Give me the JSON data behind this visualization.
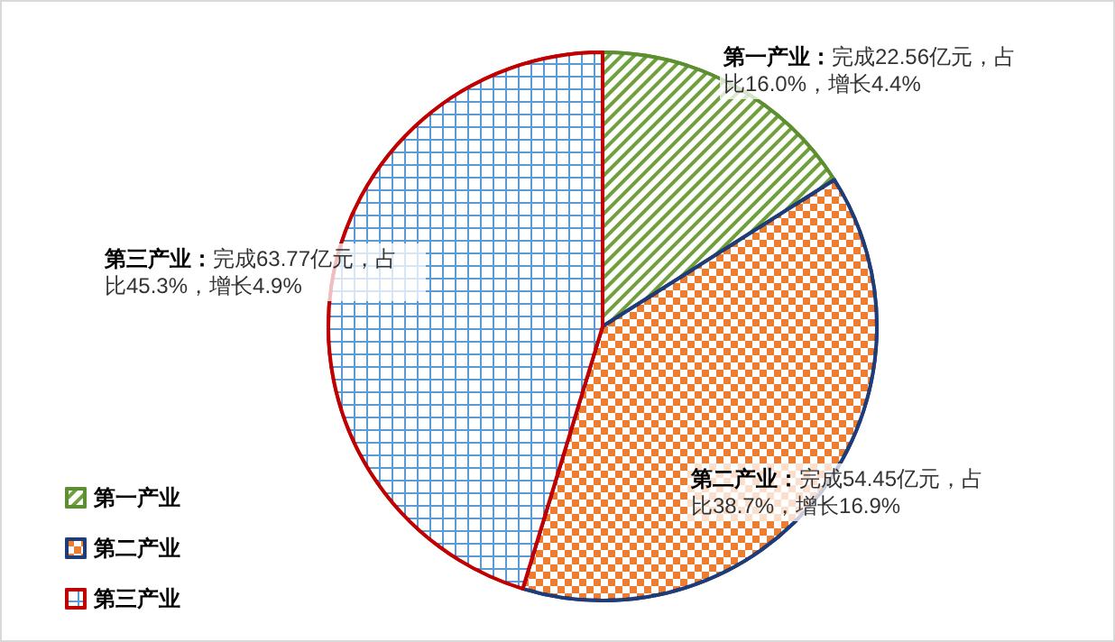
{
  "chart_data": {
    "type": "pie",
    "categories": [
      "第一产业",
      "第二产业",
      "第三产业"
    ],
    "values": [
      22.56,
      54.45,
      63.77
    ],
    "colors": [
      "#70a03c",
      "#ed7d31",
      "#5b9bd5"
    ],
    "value_labels": [
      "第一产业：完成22.56亿元，占比16.0%，增长4.4%",
      "第二产业：完成54.45亿元，占比38.7%，增长16.9%",
      "第三产业：完成63.77亿元，占比45.3%，增长4.9%"
    ],
    "legend": "bottom left"
  }
}
